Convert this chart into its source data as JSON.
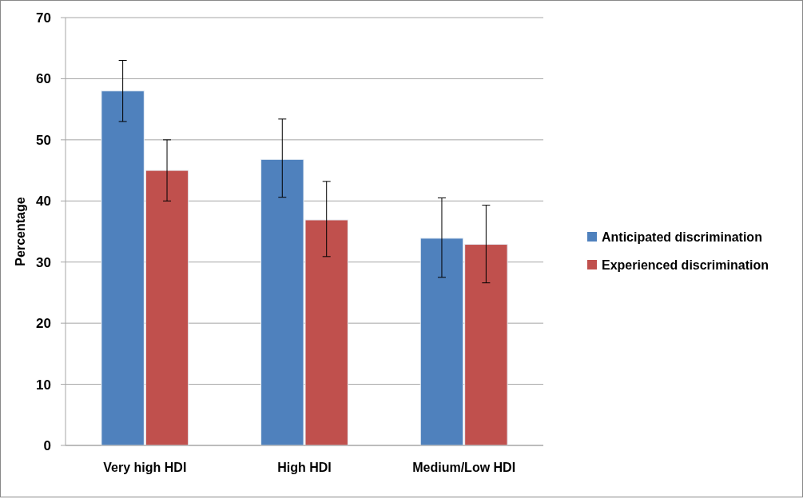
{
  "chart_data": {
    "type": "bar",
    "ylabel": "Percentage",
    "categories": [
      "Very high HDI",
      "High HDI",
      "Medium/Low HDI"
    ],
    "series": [
      {
        "name": "Anticipated discrimination",
        "color": "#4f81bd",
        "values": [
          58,
          46.8,
          33.9
        ],
        "errors": [
          [
            53,
            63
          ],
          [
            40.6,
            53.4
          ],
          [
            27.5,
            40.5
          ]
        ]
      },
      {
        "name": "Experienced discrimination",
        "color": "#c0504d",
        "values": [
          45,
          36.9,
          32.9
        ],
        "errors": [
          [
            40,
            50
          ],
          [
            30.9,
            43.2
          ],
          [
            26.6,
            39.3
          ]
        ]
      }
    ],
    "ylim": [
      0,
      70
    ],
    "yticks": [
      0,
      10,
      20,
      30,
      40,
      50,
      60,
      70
    ],
    "grid": "y",
    "legend": "right"
  }
}
